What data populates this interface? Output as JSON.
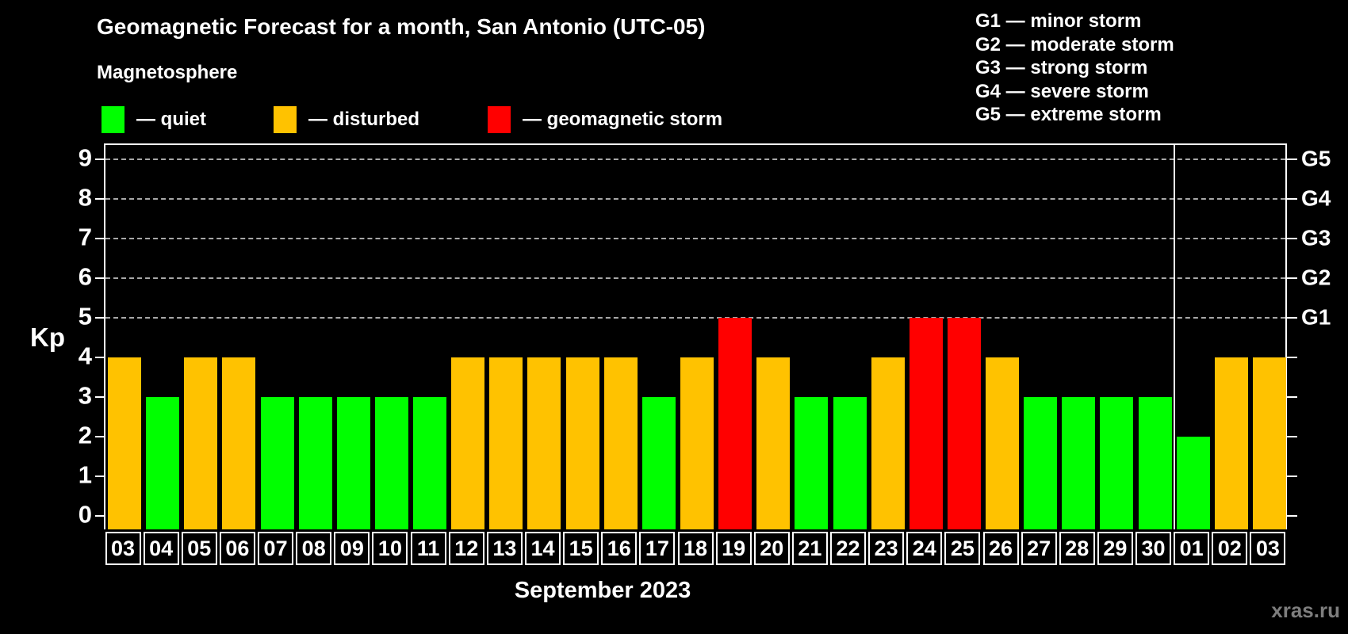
{
  "title": "Geomagnetic Forecast for a month, San Antonio (UTC-05)",
  "subtitle": "Magnetosphere",
  "legend": [
    {
      "key": "quiet",
      "label": "— quiet",
      "color": "#00ff00"
    },
    {
      "key": "disturbed",
      "label": "— disturbed",
      "color": "#ffc200"
    },
    {
      "key": "storm",
      "label": "— geomagnetic storm",
      "color": "#ff0000"
    }
  ],
  "g_scale": [
    "G1 — minor storm",
    "G2 — moderate storm",
    "G3 — strong storm",
    "G4 — severe storm",
    "G5 — extreme storm"
  ],
  "watermark": "xras.ru",
  "chart_data": {
    "type": "bar",
    "title": "Geomagnetic Forecast for a month, San Antonio (UTC-05)",
    "xlabel": "September 2023",
    "ylabel": "Kp",
    "ylim": [
      0,
      9
    ],
    "yticks": [
      0,
      1,
      2,
      3,
      4,
      5,
      6,
      7,
      8,
      9
    ],
    "gridlines_at": [
      5,
      6,
      7,
      8,
      9
    ],
    "grid": "dashed horizontal lines at G-storm levels only",
    "legend_position": "top",
    "right_axis": [
      {
        "label": "G1",
        "kp": 5
      },
      {
        "label": "G2",
        "kp": 6
      },
      {
        "label": "G3",
        "kp": 7
      },
      {
        "label": "G4",
        "kp": 8
      },
      {
        "label": "G5",
        "kp": 9
      }
    ],
    "categories": [
      "03",
      "04",
      "05",
      "06",
      "07",
      "08",
      "09",
      "10",
      "11",
      "12",
      "13",
      "14",
      "15",
      "16",
      "17",
      "18",
      "19",
      "20",
      "21",
      "22",
      "23",
      "24",
      "25",
      "26",
      "27",
      "28",
      "29",
      "30",
      "01",
      "02",
      "03"
    ],
    "values": [
      4,
      3,
      4,
      4,
      3,
      3,
      3,
      3,
      3,
      4,
      4,
      4,
      4,
      4,
      3,
      4,
      5,
      4,
      3,
      3,
      4,
      5,
      5,
      4,
      3,
      3,
      3,
      3,
      2,
      4,
      4
    ],
    "statuses": [
      "disturbed",
      "quiet",
      "disturbed",
      "disturbed",
      "quiet",
      "quiet",
      "quiet",
      "quiet",
      "quiet",
      "disturbed",
      "disturbed",
      "disturbed",
      "disturbed",
      "disturbed",
      "quiet",
      "disturbed",
      "storm",
      "disturbed",
      "quiet",
      "quiet",
      "disturbed",
      "storm",
      "storm",
      "disturbed",
      "quiet",
      "quiet",
      "quiet",
      "quiet",
      "quiet",
      "disturbed",
      "disturbed"
    ],
    "status_colors": {
      "quiet": "#00ff00",
      "disturbed": "#ffc200",
      "storm": "#ff0000"
    },
    "month_separator_index": 28
  }
}
